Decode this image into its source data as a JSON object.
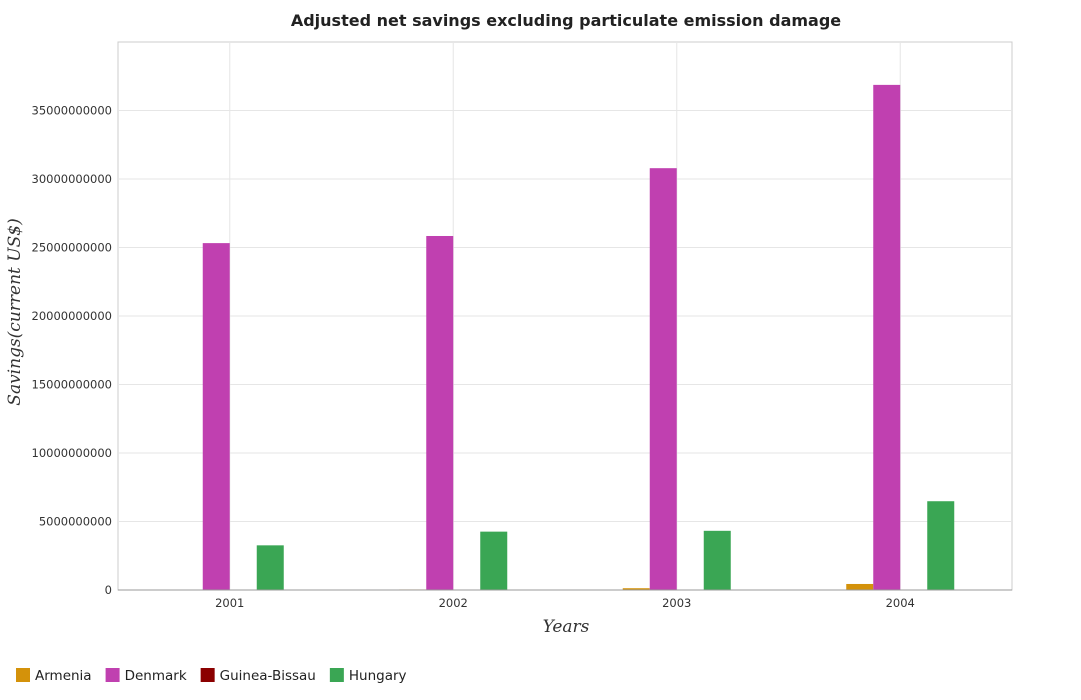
{
  "chart_data": {
    "type": "bar",
    "title": "Adjusted net savings excluding particulate emission damage",
    "xlabel": "Years",
    "ylabel": "Savings(current US$)",
    "categories": [
      "2001",
      "2002",
      "2003",
      "2004"
    ],
    "ylim": [
      0,
      40000000000
    ],
    "yticks": [
      0,
      5000000000,
      10000000000,
      15000000000,
      20000000000,
      25000000000,
      30000000000,
      35000000000
    ],
    "ytick_labels": [
      "0",
      "5000000000",
      "10000000000",
      "15000000000",
      "20000000000",
      "25000000000",
      "30000000000",
      "35000000000"
    ],
    "grid": true,
    "legend_position": "bottom-left",
    "series": [
      {
        "name": "Armenia",
        "color": "#d4920a",
        "values": [
          10000000,
          40000000,
          130000000,
          440000000
        ]
      },
      {
        "name": "Denmark",
        "color": "#c040b0",
        "values": [
          25320000000,
          25840000000,
          30790000000,
          36870000000
        ]
      },
      {
        "name": "Guinea-Bissau",
        "color": "#8b0000",
        "values": [
          5000000,
          3000000,
          4000000,
          6000000
        ]
      },
      {
        "name": "Hungary",
        "color": "#3aa654",
        "values": [
          3260000000,
          4260000000,
          4320000000,
          6480000000
        ]
      }
    ]
  }
}
